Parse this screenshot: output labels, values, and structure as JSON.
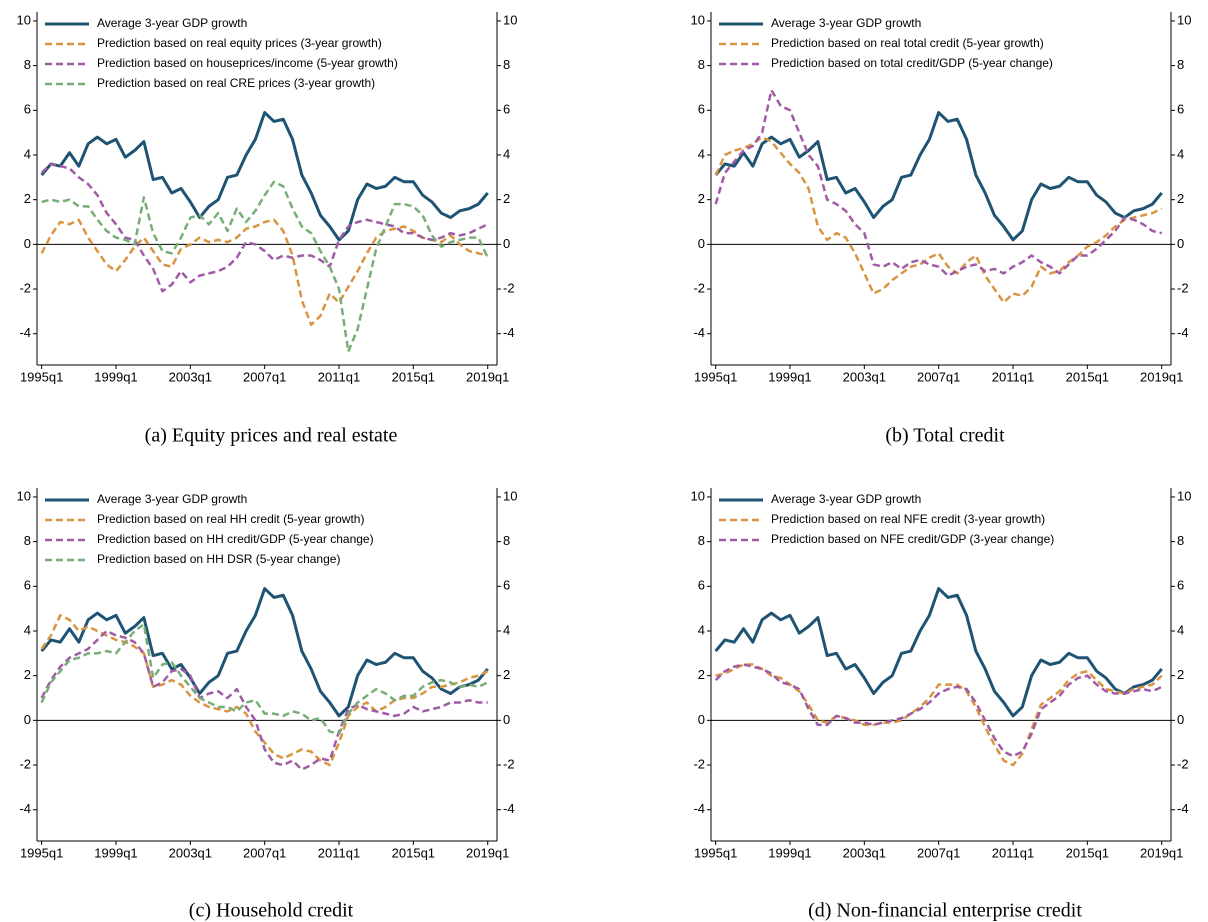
{
  "chart_data": [
    {
      "type": "line",
      "caption": "(a) Equity prices and real estate",
      "x": [
        "1995q1",
        "1995q3",
        "1996q1",
        "1996q3",
        "1997q1",
        "1997q3",
        "1998q1",
        "1998q3",
        "1999q1",
        "1999q3",
        "2000q1",
        "2000q3",
        "2001q1",
        "2001q3",
        "2002q1",
        "2002q3",
        "2003q1",
        "2003q3",
        "2004q1",
        "2004q3",
        "2005q1",
        "2005q3",
        "2006q1",
        "2006q3",
        "2007q1",
        "2007q3",
        "2008q1",
        "2008q3",
        "2009q1",
        "2009q3",
        "2010q1",
        "2010q3",
        "2011q1",
        "2011q3",
        "2012q1",
        "2012q3",
        "2013q1",
        "2013q3",
        "2014q1",
        "2014q3",
        "2015q1",
        "2015q3",
        "2016q1",
        "2016q3",
        "2017q1",
        "2017q3",
        "2018q1",
        "2018q3",
        "2019q1"
      ],
      "xlim": [
        "1994q4",
        "2019q3"
      ],
      "xticks": [
        "1995q1",
        "1999q1",
        "2003q1",
        "2007q1",
        "2011q1",
        "2015q1",
        "2019q1"
      ],
      "ylim": [
        -5.4,
        10.4
      ],
      "yticks": [
        -4,
        -2,
        0,
        2,
        4,
        6,
        8,
        10
      ],
      "series": [
        {
          "name": "Average 3-year GDP growth",
          "color": "#1f5373",
          "dashed": false,
          "values": [
            3.1,
            3.6,
            3.5,
            4.1,
            3.5,
            4.5,
            4.8,
            4.5,
            4.7,
            3.9,
            4.2,
            4.6,
            2.9,
            3.0,
            2.3,
            2.5,
            1.9,
            1.2,
            1.7,
            2.0,
            3.0,
            3.1,
            4.0,
            4.7,
            5.9,
            5.5,
            5.6,
            4.7,
            3.1,
            2.3,
            1.3,
            0.8,
            0.2,
            0.6,
            2.0,
            2.7,
            2.5,
            2.6,
            3.0,
            2.8,
            2.8,
            2.2,
            1.9,
            1.4,
            1.2,
            1.5,
            1.6,
            1.8,
            2.3
          ]
        },
        {
          "name": "Prediction based on real equity prices (3-year growth)",
          "color": "#d99440",
          "dashed": true,
          "values": [
            -0.4,
            0.4,
            1.0,
            0.9,
            1.1,
            0.3,
            -0.3,
            -0.9,
            -1.2,
            -0.7,
            -0.1,
            0.3,
            -0.3,
            -0.9,
            -1.0,
            -0.2,
            0.0,
            0.3,
            0.1,
            0.2,
            0.1,
            0.3,
            0.7,
            0.8,
            1.0,
            1.1,
            0.6,
            -0.5,
            -2.5,
            -3.6,
            -3.2,
            -2.2,
            -2.6,
            -1.9,
            -1.2,
            -0.4,
            0.3,
            0.6,
            0.7,
            0.8,
            0.6,
            0.3,
            0.2,
            0.1,
            0.4,
            0.0,
            -0.3,
            -0.4,
            -0.5
          ]
        },
        {
          "name": "Prediction based on houseprices/income (5-year growth)",
          "color": "#a05ba6",
          "dashed": true,
          "values": [
            3.2,
            3.6,
            3.5,
            3.4,
            3.0,
            2.7,
            2.2,
            1.4,
            0.9,
            0.3,
            0.2,
            -0.5,
            -1.1,
            -2.1,
            -1.8,
            -1.2,
            -1.7,
            -1.4,
            -1.3,
            -1.2,
            -1.0,
            -0.6,
            0.1,
            0.0,
            -0.3,
            -0.7,
            -0.5,
            -0.6,
            -0.5,
            -0.5,
            -0.7,
            -1.0,
            0.2,
            0.8,
            1.0,
            1.1,
            1.0,
            0.9,
            0.8,
            0.5,
            0.5,
            0.3,
            0.2,
            0.3,
            0.5,
            0.4,
            0.5,
            0.7,
            0.9
          ]
        },
        {
          "name": "Prediction based on real CRE prices (3-year growth)",
          "color": "#77ad77",
          "dashed": true,
          "values": [
            1.9,
            2.0,
            1.9,
            2.0,
            1.7,
            1.7,
            1.1,
            0.6,
            0.3,
            0.2,
            0.0,
            2.1,
            0.5,
            -0.3,
            -0.4,
            0.3,
            1.2,
            1.3,
            0.9,
            1.4,
            0.6,
            1.6,
            1.0,
            1.5,
            2.2,
            2.8,
            2.6,
            1.6,
            0.8,
            0.5,
            -0.3,
            -1.0,
            -2.0,
            -4.8,
            -3.8,
            -2.0,
            -0.2,
            0.8,
            1.8,
            1.8,
            1.7,
            1.3,
            0.4,
            -0.1,
            0.1,
            0.2,
            0.3,
            0.3,
            -0.6
          ]
        }
      ]
    },
    {
      "type": "line",
      "caption": "(b) Total credit",
      "x": [
        "1995q1",
        "1995q3",
        "1996q1",
        "1996q3",
        "1997q1",
        "1997q3",
        "1998q1",
        "1998q3",
        "1999q1",
        "1999q3",
        "2000q1",
        "2000q3",
        "2001q1",
        "2001q3",
        "2002q1",
        "2002q3",
        "2003q1",
        "2003q3",
        "2004q1",
        "2004q3",
        "2005q1",
        "2005q3",
        "2006q1",
        "2006q3",
        "2007q1",
        "2007q3",
        "2008q1",
        "2008q3",
        "2009q1",
        "2009q3",
        "2010q1",
        "2010q3",
        "2011q1",
        "2011q3",
        "2012q1",
        "2012q3",
        "2013q1",
        "2013q3",
        "2014q1",
        "2014q3",
        "2015q1",
        "2015q3",
        "2016q1",
        "2016q3",
        "2017q1",
        "2017q3",
        "2018q1",
        "2018q3",
        "2019q1"
      ],
      "xlim": [
        "1994q4",
        "2019q3"
      ],
      "xticks": [
        "1995q1",
        "1999q1",
        "2003q1",
        "2007q1",
        "2011q1",
        "2015q1",
        "2019q1"
      ],
      "ylim": [
        -5.4,
        10.4
      ],
      "yticks": [
        -4,
        -2,
        0,
        2,
        4,
        6,
        8,
        10
      ],
      "series": [
        {
          "name": "Average 3-year GDP growth",
          "color": "#1f5373",
          "dashed": false,
          "values": [
            3.1,
            3.6,
            3.5,
            4.1,
            3.5,
            4.5,
            4.8,
            4.5,
            4.7,
            3.9,
            4.2,
            4.6,
            2.9,
            3.0,
            2.3,
            2.5,
            1.9,
            1.2,
            1.7,
            2.0,
            3.0,
            3.1,
            4.0,
            4.7,
            5.9,
            5.5,
            5.6,
            4.7,
            3.1,
            2.3,
            1.3,
            0.8,
            0.2,
            0.6,
            2.0,
            2.7,
            2.5,
            2.6,
            3.0,
            2.8,
            2.8,
            2.2,
            1.9,
            1.4,
            1.2,
            1.5,
            1.6,
            1.8,
            2.3
          ]
        },
        {
          "name": "Prediction based on real total credit (5-year growth)",
          "color": "#d99440",
          "dashed": true,
          "values": [
            3.1,
            4.0,
            4.2,
            4.3,
            4.5,
            4.8,
            4.6,
            4.1,
            3.6,
            3.2,
            2.5,
            0.8,
            0.2,
            0.5,
            0.3,
            -0.4,
            -1.3,
            -2.2,
            -2.0,
            -1.6,
            -1.3,
            -1.0,
            -0.9,
            -0.6,
            -0.4,
            -1.0,
            -1.3,
            -0.8,
            -0.5,
            -1.4,
            -2.0,
            -2.6,
            -2.2,
            -2.3,
            -1.9,
            -1.0,
            -1.3,
            -1.2,
            -0.8,
            -0.5,
            -0.1,
            0.1,
            0.4,
            0.8,
            1.1,
            1.2,
            1.3,
            1.4,
            1.6
          ]
        },
        {
          "name": "Prediction based on total credit/GDP (5-year change)",
          "color": "#a05ba6",
          "dashed": true,
          "values": [
            1.8,
            3.2,
            3.7,
            4.2,
            4.4,
            5.0,
            6.9,
            6.2,
            6.0,
            5.0,
            4.0,
            3.5,
            2.0,
            1.8,
            1.5,
            0.9,
            0.5,
            -0.9,
            -1.0,
            -0.8,
            -1.1,
            -0.8,
            -0.7,
            -0.9,
            -1.0,
            -1.4,
            -1.2,
            -1.0,
            -0.9,
            -1.2,
            -1.1,
            -1.3,
            -1.0,
            -0.8,
            -0.5,
            -0.8,
            -1.0,
            -1.3,
            -0.9,
            -0.5,
            -0.5,
            -0.2,
            0.2,
            0.6,
            1.2,
            1.1,
            0.9,
            0.6,
            0.5
          ]
        }
      ]
    },
    {
      "type": "line",
      "caption": "(c) Household credit",
      "x": [
        "1995q1",
        "1995q3",
        "1996q1",
        "1996q3",
        "1997q1",
        "1997q3",
        "1998q1",
        "1998q3",
        "1999q1",
        "1999q3",
        "2000q1",
        "2000q3",
        "2001q1",
        "2001q3",
        "2002q1",
        "2002q3",
        "2003q1",
        "2003q3",
        "2004q1",
        "2004q3",
        "2005q1",
        "2005q3",
        "2006q1",
        "2006q3",
        "2007q1",
        "2007q3",
        "2008q1",
        "2008q3",
        "2009q1",
        "2009q3",
        "2010q1",
        "2010q3",
        "2011q1",
        "2011q3",
        "2012q1",
        "2012q3",
        "2013q1",
        "2013q3",
        "2014q1",
        "2014q3",
        "2015q1",
        "2015q3",
        "2016q1",
        "2016q3",
        "2017q1",
        "2017q3",
        "2018q1",
        "2018q3",
        "2019q1"
      ],
      "xlim": [
        "1994q4",
        "2019q3"
      ],
      "xticks": [
        "1995q1",
        "1999q1",
        "2003q1",
        "2007q1",
        "2011q1",
        "2015q1",
        "2019q1"
      ],
      "ylim": [
        -5.4,
        10.4
      ],
      "yticks": [
        -4,
        -2,
        0,
        2,
        4,
        6,
        8,
        10
      ],
      "series": [
        {
          "name": "Average 3-year GDP growth",
          "color": "#1f5373",
          "dashed": false,
          "values": [
            3.1,
            3.6,
            3.5,
            4.1,
            3.5,
            4.5,
            4.8,
            4.5,
            4.7,
            3.9,
            4.2,
            4.6,
            2.9,
            3.0,
            2.3,
            2.5,
            1.9,
            1.2,
            1.7,
            2.0,
            3.0,
            3.1,
            4.0,
            4.7,
            5.9,
            5.5,
            5.6,
            4.7,
            3.1,
            2.3,
            1.3,
            0.8,
            0.2,
            0.6,
            2.0,
            2.7,
            2.5,
            2.6,
            3.0,
            2.8,
            2.8,
            2.2,
            1.9,
            1.4,
            1.2,
            1.5,
            1.6,
            1.8,
            2.3
          ]
        },
        {
          "name": "Prediction based on real HH credit (5-year growth)",
          "color": "#d99440",
          "dashed": true,
          "values": [
            3.2,
            3.8,
            4.7,
            4.5,
            4.0,
            4.2,
            4.0,
            3.8,
            3.6,
            3.5,
            3.3,
            3.0,
            1.5,
            1.6,
            1.8,
            1.6,
            1.1,
            0.8,
            0.6,
            0.5,
            0.4,
            0.6,
            0.3,
            -0.5,
            -1.0,
            -1.5,
            -1.7,
            -1.5,
            -1.3,
            -1.4,
            -1.8,
            -2.0,
            -1.0,
            0.2,
            0.6,
            0.8,
            0.4,
            0.6,
            0.9,
            1.0,
            1.0,
            1.2,
            1.5,
            1.5,
            1.6,
            1.7,
            1.9,
            2.0,
            2.2
          ]
        },
        {
          "name": "Prediction based on HH credit/GDP (5-year change)",
          "color": "#a05ba6",
          "dashed": true,
          "values": [
            1.0,
            1.8,
            2.4,
            2.8,
            3.0,
            3.2,
            3.6,
            4.0,
            3.8,
            3.7,
            3.5,
            3.0,
            1.5,
            1.7,
            2.2,
            2.3,
            2.0,
            1.0,
            1.2,
            1.3,
            1.0,
            1.4,
            0.6,
            0.0,
            -1.3,
            -1.9,
            -2.0,
            -1.8,
            -2.2,
            -2.0,
            -1.7,
            -1.8,
            -0.5,
            0.5,
            0.7,
            0.5,
            0.4,
            0.3,
            0.2,
            0.3,
            0.6,
            0.4,
            0.5,
            0.6,
            0.8,
            0.8,
            0.9,
            0.8,
            0.8
          ]
        },
        {
          "name": "Prediction based on HH DSR (5-year change)",
          "color": "#77ad77",
          "dashed": true,
          "values": [
            0.8,
            1.7,
            2.2,
            2.7,
            2.8,
            3.0,
            3.0,
            3.1,
            3.0,
            3.5,
            4.0,
            4.3,
            1.9,
            2.5,
            2.6,
            2.0,
            1.5,
            1.0,
            0.8,
            0.6,
            0.6,
            0.4,
            0.8,
            0.9,
            0.3,
            0.3,
            0.2,
            0.4,
            0.3,
            0.0,
            0.1,
            -0.5,
            -0.6,
            0.3,
            0.8,
            1.1,
            1.4,
            1.2,
            0.9,
            1.1,
            1.1,
            1.5,
            1.7,
            1.8,
            1.7,
            1.5,
            1.6,
            1.5,
            1.7
          ]
        }
      ]
    },
    {
      "type": "line",
      "caption": "(d) Non-financial enterprise credit",
      "x": [
        "1995q1",
        "1995q3",
        "1996q1",
        "1996q3",
        "1997q1",
        "1997q3",
        "1998q1",
        "1998q3",
        "1999q1",
        "1999q3",
        "2000q1",
        "2000q3",
        "2001q1",
        "2001q3",
        "2002q1",
        "2002q3",
        "2003q1",
        "2003q3",
        "2004q1",
        "2004q3",
        "2005q1",
        "2005q3",
        "2006q1",
        "2006q3",
        "2007q1",
        "2007q3",
        "2008q1",
        "2008q3",
        "2009q1",
        "2009q3",
        "2010q1",
        "2010q3",
        "2011q1",
        "2011q3",
        "2012q1",
        "2012q3",
        "2013q1",
        "2013q3",
        "2014q1",
        "2014q3",
        "2015q1",
        "2015q3",
        "2016q1",
        "2016q3",
        "2017q1",
        "2017q3",
        "2018q1",
        "2018q3",
        "2019q1"
      ],
      "xlim": [
        "1994q4",
        "2019q3"
      ],
      "xticks": [
        "1995q1",
        "1999q1",
        "2003q1",
        "2007q1",
        "2011q1",
        "2015q1",
        "2019q1"
      ],
      "ylim": [
        -5.4,
        10.4
      ],
      "yticks": [
        -4,
        -2,
        0,
        2,
        4,
        6,
        8,
        10
      ],
      "series": [
        {
          "name": "Average 3-year GDP growth",
          "color": "#1f5373",
          "dashed": false,
          "values": [
            3.1,
            3.6,
            3.5,
            4.1,
            3.5,
            4.5,
            4.8,
            4.5,
            4.7,
            3.9,
            4.2,
            4.6,
            2.9,
            3.0,
            2.3,
            2.5,
            1.9,
            1.2,
            1.7,
            2.0,
            3.0,
            3.1,
            4.0,
            4.7,
            5.9,
            5.5,
            5.6,
            4.7,
            3.1,
            2.3,
            1.3,
            0.8,
            0.2,
            0.6,
            2.0,
            2.7,
            2.5,
            2.6,
            3.0,
            2.8,
            2.8,
            2.2,
            1.9,
            1.4,
            1.2,
            1.5,
            1.6,
            1.8,
            2.3
          ]
        },
        {
          "name": "Prediction based on real NFE credit (3-year growth)",
          "color": "#d99440",
          "dashed": true,
          "values": [
            2.0,
            2.1,
            2.3,
            2.5,
            2.5,
            2.3,
            2.0,
            1.9,
            1.6,
            1.3,
            0.7,
            0.0,
            -0.1,
            0.2,
            0.1,
            0.0,
            -0.2,
            -0.2,
            -0.1,
            -0.1,
            0.0,
            0.3,
            0.6,
            1.0,
            1.6,
            1.6,
            1.6,
            1.3,
            0.6,
            -0.3,
            -1.1,
            -1.8,
            -2.0,
            -1.5,
            -0.4,
            0.7,
            1.0,
            1.3,
            1.8,
            2.1,
            2.2,
            1.8,
            1.4,
            1.3,
            1.2,
            1.4,
            1.5,
            1.6,
            2.0
          ]
        },
        {
          "name": "Prediction based on NFE credit/GDP (3-year change)",
          "color": "#a05ba6",
          "dashed": true,
          "values": [
            1.8,
            2.2,
            2.4,
            2.5,
            2.4,
            2.3,
            2.1,
            1.7,
            1.6,
            1.4,
            0.5,
            -0.2,
            -0.2,
            0.2,
            0.1,
            -0.1,
            -0.1,
            -0.2,
            -0.1,
            0.0,
            0.1,
            0.3,
            0.5,
            0.8,
            1.2,
            1.4,
            1.5,
            1.4,
            0.8,
            0.0,
            -0.8,
            -1.4,
            -1.6,
            -1.4,
            -0.6,
            0.5,
            0.8,
            1.1,
            1.6,
            1.9,
            2.0,
            1.6,
            1.3,
            1.2,
            1.2,
            1.3,
            1.4,
            1.3,
            1.5
          ]
        }
      ]
    }
  ]
}
